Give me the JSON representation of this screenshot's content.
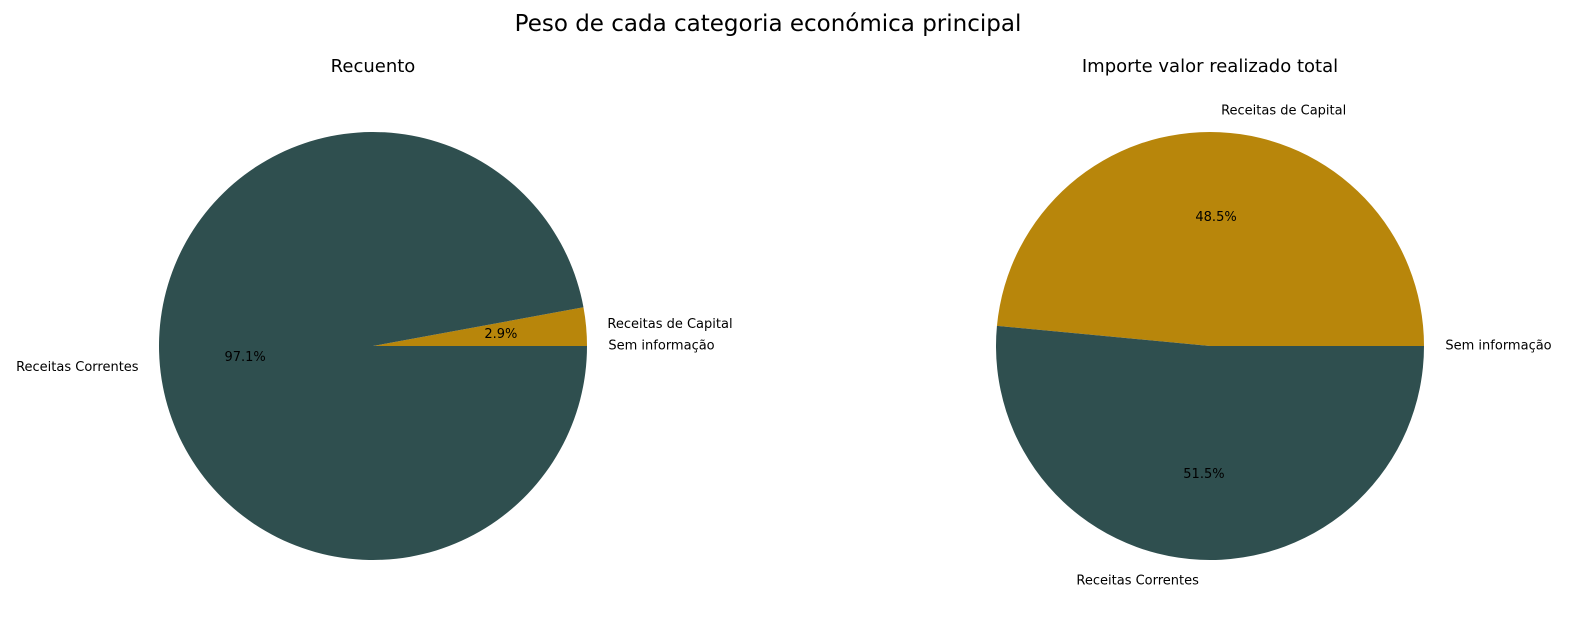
{
  "figure": {
    "title": "Peso de cada categoria económica principal"
  },
  "chart_data": [
    {
      "type": "pie",
      "title": "Recuento",
      "slices": [
        {
          "label": "Sem informação",
          "value": 0.0,
          "pct_label": "0.0%",
          "color": "#2f4f4f"
        },
        {
          "label": "Receitas de Capital",
          "value": 2.9,
          "pct_label": "2.9%",
          "color": "#b8860b"
        },
        {
          "label": "Receitas Correntes",
          "value": 97.1,
          "pct_label": "97.1%",
          "color": "#2f4f4f"
        }
      ]
    },
    {
      "type": "pie",
      "title": "Importe valor realizado total",
      "slices": [
        {
          "label": "Sem informação",
          "value": 0.0,
          "pct_label": "0.0%",
          "color": "#2f4f4f"
        },
        {
          "label": "Receitas de Capital",
          "value": 48.5,
          "pct_label": "48.5%",
          "color": "#b8860b"
        },
        {
          "label": "Receitas Correntes",
          "value": 51.5,
          "pct_label": "51.5%",
          "color": "#2f4f4f"
        }
      ]
    }
  ]
}
